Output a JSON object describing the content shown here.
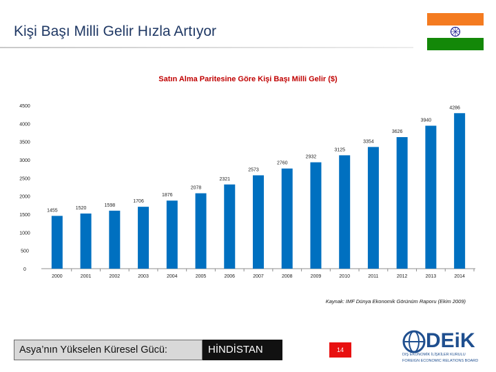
{
  "slide": {
    "title": "Kişi Başı Milli Gelir Hızla Artıyor",
    "footer_left": "Asya’nın Yükselen Küresel Gücü:",
    "footer_right": "HİNDİSTAN",
    "page_number": "14",
    "source": "Kaynak: IMF Dünya Ekonomik Görünüm Raporu (Ekim 2009)",
    "logo_text": "DEiK",
    "logo_line1": "DIŞ EKONOMİK İLİŞKİLER KURULU",
    "logo_line2": "FOREIGN ECONOMIC RELATIONS BOARD"
  },
  "colors": {
    "bar_fill": "#0070c0",
    "flag_saffron": "#f47b20",
    "flag_white": "#ffffff",
    "flag_green": "#138808",
    "chakra": "#000080",
    "title_color": "#1f3864",
    "chart_title_color": "#c00000"
  },
  "chart_data": {
    "type": "bar",
    "title": "Satın Alma Paritesine Göre Kişi Başı Milli Gelir ($)",
    "xlabel": "",
    "ylabel": "",
    "categories": [
      "2000",
      "2001",
      "2002",
      "2003",
      "2004",
      "2005",
      "2006",
      "2007",
      "2008",
      "2009",
      "2010",
      "2011",
      "2012",
      "2013",
      "2014"
    ],
    "values": [
      1455,
      1520,
      1598,
      1706,
      1876,
      2078,
      2321,
      2573,
      2760,
      2932,
      3125,
      3354,
      3626,
      3940,
      4286
    ],
    "y_ticks": [
      0,
      500,
      1000,
      1500,
      2000,
      2500,
      3000,
      3500,
      4000,
      4500
    ],
    "ylim": [
      0,
      4500
    ],
    "grid": false,
    "legend": "none"
  }
}
